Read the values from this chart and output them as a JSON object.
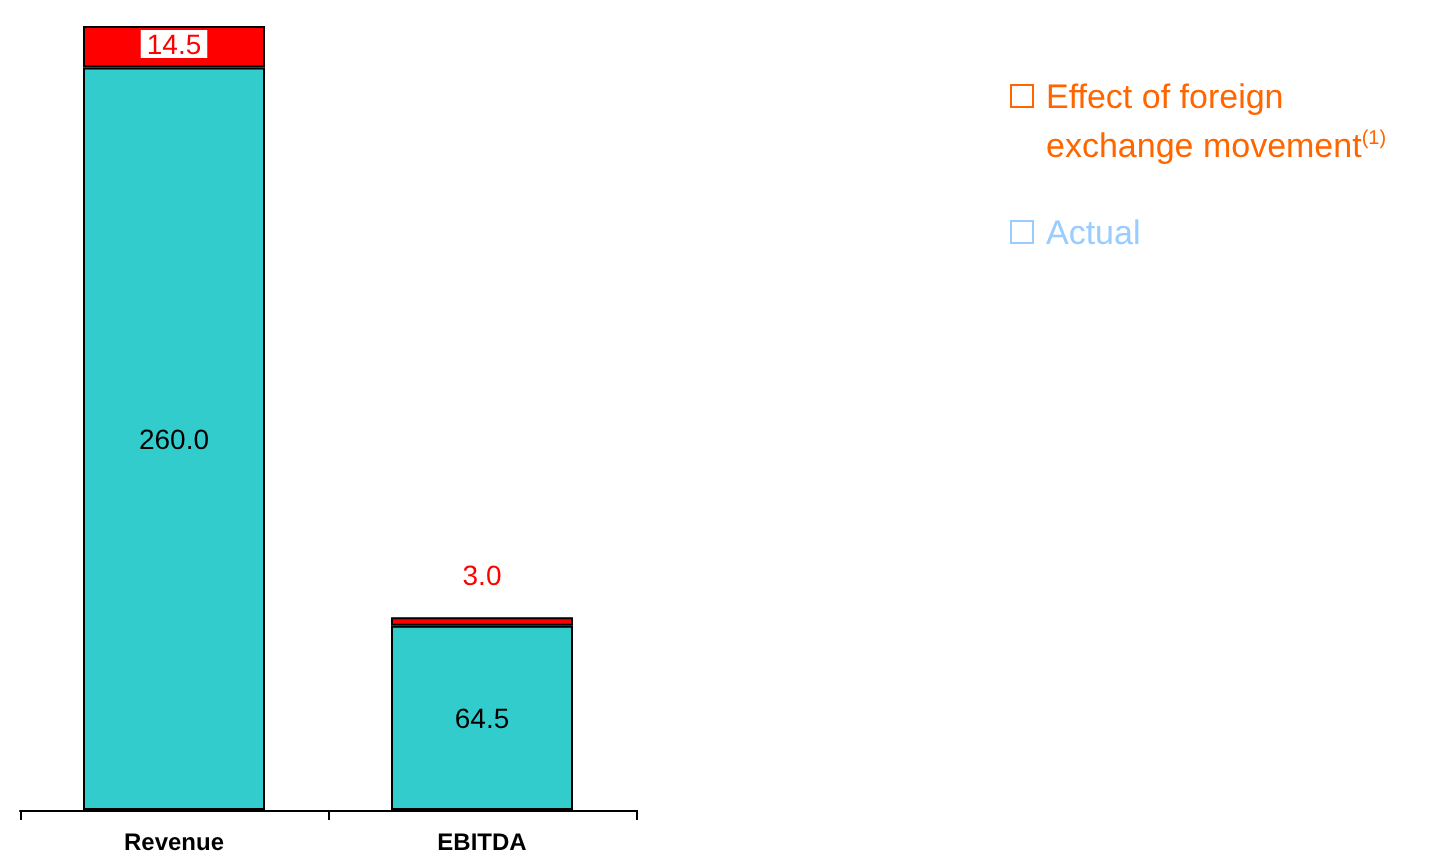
{
  "chart_data": {
    "type": "bar",
    "stacked": true,
    "categories": [
      "Revenue",
      "EBITDA"
    ],
    "series": [
      {
        "name": "Actual",
        "color": "#33cccc",
        "values": [
          260.0,
          64.5
        ],
        "value_labels": [
          "260.0",
          "64.5"
        ]
      },
      {
        "name": "Effect of foreign exchange movement$^{(1)}$",
        "color": "#ff0000",
        "values": [
          14.5,
          3.0
        ],
        "value_labels": [
          "14.5",
          "3.0"
        ]
      }
    ],
    "legend": "top right",
    "grid": false
  }
}
